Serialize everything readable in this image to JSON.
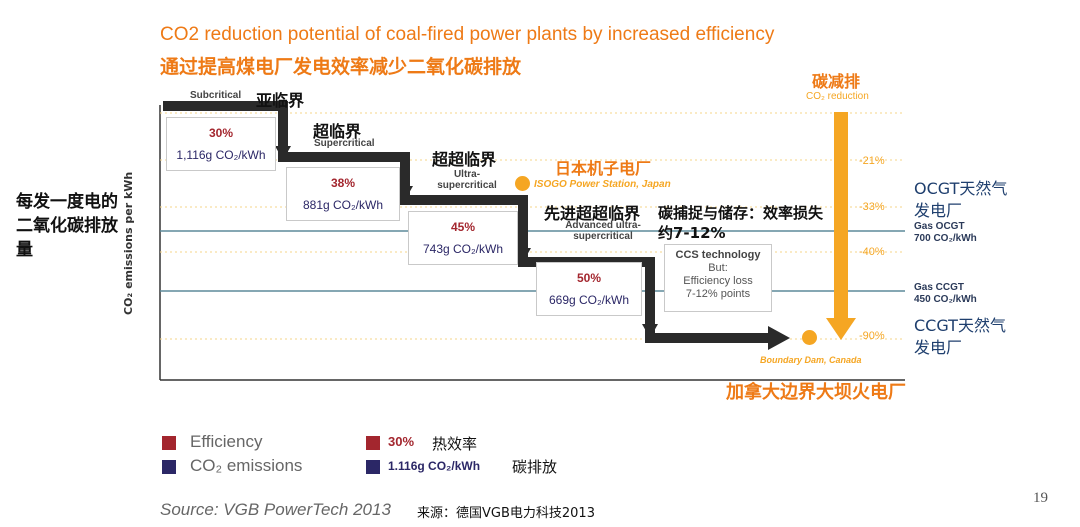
{
  "title_en": "CO2 reduction potential of coal-fired power plants by increased efficiency",
  "title_cn": "通过提高煤电厂发电效率减少二氧化碳排放",
  "y_axis_cn": "每发一度电的二氧化碳排放量",
  "y_axis_en": "CO₂ emissions per kWh",
  "stages": [
    {
      "en": "Subcritical",
      "cn": "亚临界",
      "pct": "30%",
      "emission": "1,116g CO₂/kWh"
    },
    {
      "en": "Supercritical",
      "cn": "超临界",
      "pct": "38%",
      "emission": "881g CO₂/kWh"
    },
    {
      "en": "Ultra-supercritical",
      "cn": "超超临界",
      "pct": "45%",
      "emission": "743g CO₂/kWh"
    },
    {
      "en": "Advanced ultra-supercritical",
      "cn": "先进超超临界",
      "pct": "50%",
      "emission": "669g CO₂/kWh"
    }
  ],
  "ccs": {
    "cn": "碳捕捉与储存：效率损失约7-12%",
    "title": "CCS technology",
    "line2": "But:",
    "line3": "Efficiency loss",
    "line4": "7-12% points"
  },
  "isogo": {
    "en": "ISOGO Power Station, Japan",
    "cn": "日本机子电厂"
  },
  "boundary": {
    "en": "Boundary Dam, Canada",
    "cn": "加拿大边界大坝火电厂"
  },
  "reduction": {
    "cn": "碳减排",
    "en": "CO₂ reduction",
    "levels": [
      "-21%",
      "-33%",
      "-40%",
      "-90%"
    ]
  },
  "gas": [
    {
      "en1": "Gas OCGT",
      "en2": "700 CO₂/kWh",
      "cn": "OCGT天然气发电厂"
    },
    {
      "en1": "Gas CCGT",
      "en2": "450 CO₂/kWh",
      "cn": "CCGT天然气发电厂"
    }
  ],
  "legend": {
    "efficiency": "Efficiency",
    "emissions": "CO₂ emissions",
    "pct_example": "30%",
    "pct_cn": "热效率",
    "em_example": "1.116g CO₂/kWh",
    "em_cn": "碳排放"
  },
  "source_en": "Source: VGB PowerTech 2013",
  "source_cn": "来源：德国VGB电力科技2013",
  "page_number": "19",
  "colors": {
    "orange": "#ee7a16",
    "arrow_orange": "#f5a623",
    "efficiency": "#a3262e",
    "emissions": "#2b2766",
    "gas_line": "#5d8a9a"
  }
}
